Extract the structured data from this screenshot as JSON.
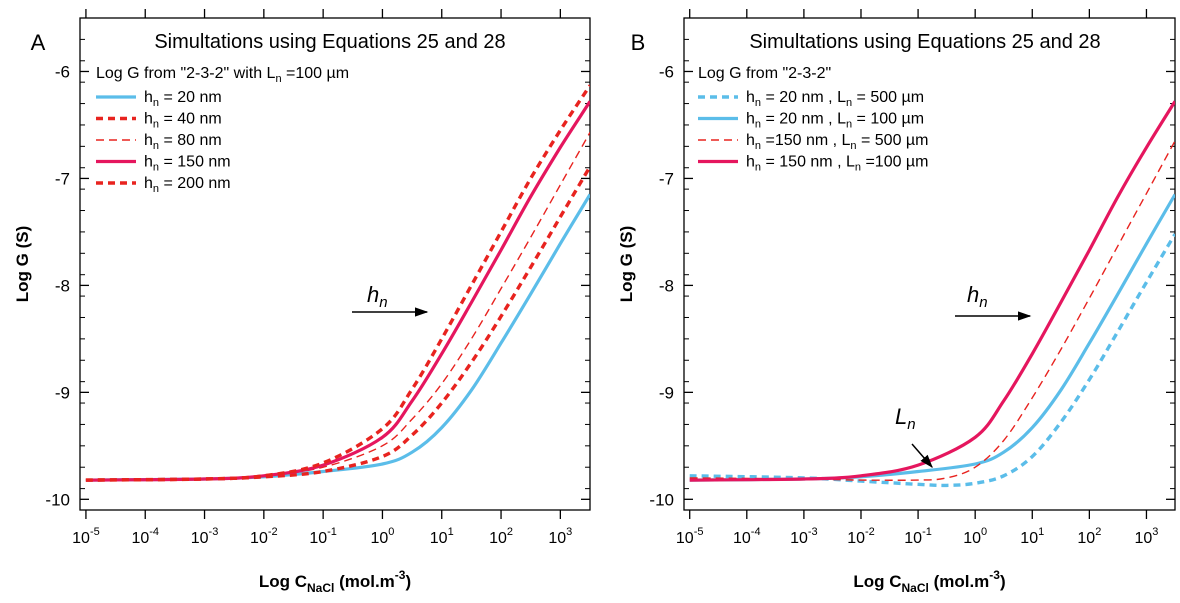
{
  "figure": {
    "panels": [
      {
        "panel_label": "A",
        "title": "Simultations using Equations 25 and 28",
        "legend_header": {
          "base": "Log G from \"2-3-2\" with L",
          "sub": "n",
          "tail": " =100 µm"
        },
        "xlabel": {
          "base": "Log C",
          "sub": "NaCl",
          "tail": " (mol.m",
          "sup": "-3",
          "end": ")"
        },
        "ylabel": "Log G (S)",
        "yticks": [
          "-6",
          "-7",
          "-8",
          "-9",
          "-10"
        ],
        "xticks": [
          {
            "base": "10",
            "exp": "-5"
          },
          {
            "base": "10",
            "exp": "-4"
          },
          {
            "base": "10",
            "exp": "-3"
          },
          {
            "base": "10",
            "exp": "-2"
          },
          {
            "base": "10",
            "exp": "-1"
          },
          {
            "base": "10",
            "exp": "0"
          },
          {
            "base": "10",
            "exp": "1"
          },
          {
            "base": "10",
            "exp": "2"
          },
          {
            "base": "10",
            "exp": "3"
          }
        ],
        "annotations": [
          {
            "base": "h",
            "sub": "n"
          }
        ]
      },
      {
        "panel_label": "B",
        "title": "Simultations using Equations 25 and 28",
        "legend_header": {
          "base": "Log G from \"2-3-2\"",
          "sub": "",
          "tail": ""
        },
        "xlabel": {
          "base": "Log C",
          "sub": "NaCl",
          "tail": " (mol.m",
          "sup": "-3",
          "end": ")"
        },
        "ylabel": "Log G (S)",
        "yticks": [
          "-6",
          "-7",
          "-8",
          "-9",
          "-10"
        ],
        "xticks": [
          {
            "base": "10",
            "exp": "-5"
          },
          {
            "base": "10",
            "exp": "-4"
          },
          {
            "base": "10",
            "exp": "-3"
          },
          {
            "base": "10",
            "exp": "-2"
          },
          {
            "base": "10",
            "exp": "-1"
          },
          {
            "base": "10",
            "exp": "0"
          },
          {
            "base": "10",
            "exp": "1"
          },
          {
            "base": "10",
            "exp": "2"
          },
          {
            "base": "10",
            "exp": "3"
          }
        ],
        "annotations": [
          {
            "base": "h",
            "sub": "n"
          },
          {
            "base": "L",
            "sub": "n"
          }
        ]
      }
    ]
  },
  "chart_data": [
    {
      "type": "line",
      "title": "Simultations using Equations 25 and 28",
      "xlabel": "Log CNaCl (mol.m-3)",
      "ylabel": "Log G (S)",
      "x_scale": "log10 (axis shows exponent)",
      "xlim": [
        -5.1,
        3.5
      ],
      "ylim": [
        -10.1,
        -5.5
      ],
      "legend_placement": "top-left",
      "series": [
        {
          "name": "hn = 20 nm",
          "color": "#5bbde9",
          "style": "solid",
          "label_parts": {
            "base": "h",
            "sub": "n",
            "tail": " = 20 nm"
          },
          "x": [
            -5,
            -3,
            -2,
            -1,
            0,
            0.5,
            1,
            1.5,
            2,
            2.5,
            3,
            3.5
          ],
          "y": [
            -9.82,
            -9.81,
            -9.79,
            -9.74,
            -9.67,
            -9.56,
            -9.33,
            -8.98,
            -8.54,
            -8.08,
            -7.61,
            -7.15
          ]
        },
        {
          "name": "hn = 40 nm",
          "color": "#e8231f",
          "style": "dashed",
          "label_parts": {
            "base": "h",
            "sub": "n",
            "tail": " = 40 nm"
          },
          "x": [
            -5,
            -3,
            -2,
            -1,
            0,
            0.5,
            1,
            1.5,
            2,
            2.5,
            3,
            3.5
          ],
          "y": [
            -9.82,
            -9.81,
            -9.79,
            -9.74,
            -9.6,
            -9.4,
            -9.1,
            -8.72,
            -8.29,
            -7.83,
            -7.36,
            -6.89
          ]
        },
        {
          "name": "hn = 80 nm",
          "color": "#e8231f",
          "style": "thin-dashed",
          "label_parts": {
            "base": "h",
            "sub": "n",
            "tail": " = 80 nm"
          },
          "x": [
            -5,
            -3,
            -2,
            -1,
            0,
            0.5,
            1,
            1.5,
            2,
            2.5,
            3,
            3.5
          ],
          "y": [
            -9.82,
            -9.81,
            -9.78,
            -9.7,
            -9.5,
            -9.25,
            -8.92,
            -8.5,
            -8.03,
            -7.55,
            -7.06,
            -6.57
          ]
        },
        {
          "name": "hn = 150 nm",
          "color": "#e5165e",
          "style": "solid",
          "label_parts": {
            "base": "h",
            "sub": "n",
            "tail": " = 150 nm"
          },
          "x": [
            -5,
            -3,
            -2,
            -1,
            0,
            0.5,
            1,
            1.5,
            2,
            2.5,
            3,
            3.5
          ],
          "y": [
            -9.82,
            -9.81,
            -9.78,
            -9.68,
            -9.42,
            -9.08,
            -8.64,
            -8.16,
            -7.67,
            -7.17,
            -6.71,
            -6.28
          ]
        },
        {
          "name": "hn = 200 nm",
          "color": "#e8231f",
          "style": "dashed",
          "label_parts": {
            "base": "h",
            "sub": "n",
            "tail": " = 200 nm"
          },
          "x": [
            -5,
            -3,
            -2,
            -1,
            0,
            0.5,
            1,
            1.5,
            2,
            2.5,
            3,
            3.5
          ],
          "y": [
            -9.82,
            -9.81,
            -9.78,
            -9.66,
            -9.34,
            -8.97,
            -8.5,
            -8.0,
            -7.5,
            -7.0,
            -6.55,
            -6.13
          ]
        }
      ]
    },
    {
      "type": "line",
      "title": "Simultations using Equations 25 and 28",
      "xlabel": "Log CNaCl (mol.m-3)",
      "ylabel": "Log G (S)",
      "x_scale": "log10 (axis shows exponent)",
      "xlim": [
        -5.1,
        3.5
      ],
      "ylim": [
        -10.1,
        -5.5
      ],
      "legend_placement": "top-left",
      "series": [
        {
          "name": "hn = 20 nm , Ln = 500 µm",
          "color": "#5bbde9",
          "style": "dashed",
          "label_parts": {
            "base": "h",
            "sub": "n",
            "tail": " = 20 nm , L",
            "sub2": "n",
            "end": " = 500 µm"
          },
          "x": [
            -5,
            -3,
            -2,
            -1,
            -0.5,
            0,
            0.5,
            1,
            1.5,
            2,
            2.5,
            3,
            3.5
          ],
          "y": [
            -9.78,
            -9.8,
            -9.83,
            -9.86,
            -9.87,
            -9.85,
            -9.78,
            -9.6,
            -9.28,
            -8.88,
            -8.43,
            -7.97,
            -7.52
          ]
        },
        {
          "name": "hn = 20 nm , Ln = 100 µm",
          "color": "#5bbde9",
          "style": "solid",
          "label_parts": {
            "base": "h",
            "sub": "n",
            "tail": " = 20 nm , L",
            "sub2": "n",
            "end": " = 100 µm"
          },
          "x": [
            -5,
            -3,
            -2,
            -1,
            0,
            0.5,
            1,
            1.5,
            2,
            2.5,
            3,
            3.5
          ],
          "y": [
            -9.82,
            -9.81,
            -9.79,
            -9.74,
            -9.67,
            -9.56,
            -9.33,
            -8.98,
            -8.54,
            -8.08,
            -7.61,
            -7.15
          ]
        },
        {
          "name": "hn =150 nm , Ln = 500 µm",
          "color": "#e8231f",
          "style": "thin-dashed",
          "label_parts": {
            "base": "h",
            "sub": "n",
            "tail": " =150 nm , L",
            "sub2": "n",
            "end": " = 500 µm"
          },
          "x": [
            -5,
            -3,
            -2,
            -1,
            -0.5,
            0,
            0.5,
            1,
            1.5,
            2,
            2.5,
            3,
            3.5
          ],
          "y": [
            -9.8,
            -9.81,
            -9.82,
            -9.82,
            -9.8,
            -9.7,
            -9.45,
            -9.05,
            -8.6,
            -8.12,
            -7.63,
            -7.14,
            -6.65
          ]
        },
        {
          "name": "hn = 150 nm , Ln =100 µm",
          "color": "#e5165e",
          "style": "solid",
          "label_parts": {
            "base": "h",
            "sub": "n",
            "tail": " = 150 nm , L",
            "sub2": "n",
            "end": " =100 µm"
          },
          "x": [
            -5,
            -3,
            -2,
            -1,
            0,
            0.5,
            1,
            1.5,
            2,
            2.5,
            3,
            3.5
          ],
          "y": [
            -9.82,
            -9.81,
            -9.78,
            -9.68,
            -9.42,
            -9.08,
            -8.64,
            -8.16,
            -7.67,
            -7.17,
            -6.71,
            -6.28
          ]
        }
      ]
    }
  ]
}
